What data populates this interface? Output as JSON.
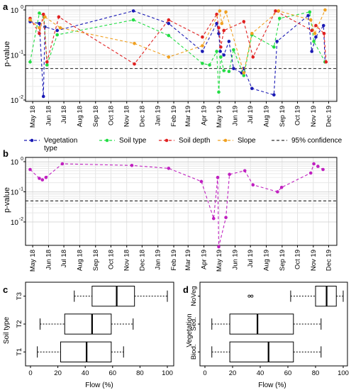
{
  "panels": {
    "a": {
      "label": "a",
      "ylabel": "p-value"
    },
    "b": {
      "label": "b",
      "ylabel": "p-value"
    },
    "c": {
      "label": "c",
      "ylabel": "Soil type",
      "xlabel": "Flow (%)"
    },
    "d": {
      "label": "d",
      "ylabel": "Vegetation",
      "xlabel": "Flow (%)"
    }
  },
  "time_axis": {
    "labels": [
      "May 18",
      "Jun 18",
      "Jul 18",
      "Aug 18",
      "Sep 18",
      "Oct 18",
      "Nov 18",
      "Dec 18",
      "Jan 19",
      "Feb 19",
      "Mar 19",
      "Apr 19",
      "May 19",
      "Jun 19",
      "Jul 19",
      "Aug 19",
      "Sep 19",
      "Oct 19",
      "Nov 19",
      "Dec 19"
    ]
  },
  "legend": {
    "items": [
      {
        "label": "Vegetation",
        "label2": "type",
        "color": "#1a1ab5"
      },
      {
        "label": "Soil type",
        "color": "#22dd44"
      },
      {
        "label": "Soil depth",
        "color": "#e02020"
      },
      {
        "label": "Slope",
        "color": "#f0a020"
      },
      {
        "label": "95% confidence",
        "color": "#333333"
      }
    ]
  },
  "chart_data": [
    {
      "type": "line",
      "panel": "a",
      "ylabel": "p-value",
      "yscale": "log",
      "ylim": [
        0.01,
        1
      ],
      "ytick_labels": [
        "10⁻²",
        "10⁻¹",
        "10⁰"
      ],
      "xlim": [
        "2018-05-01",
        "2019-12-31"
      ],
      "grid": true,
      "reference_line": {
        "y": 0.05,
        "label": "95% confidence",
        "style": "dashed"
      },
      "series": [
        {
          "name": "Vegetation type",
          "color": "#1a1ab5",
          "x": [
            "2018-05-10",
            "2018-05-28",
            "2018-06-05",
            "2018-06-08",
            "2018-07-02",
            "2018-11-28",
            "2019-02-05",
            "2019-04-12",
            "2019-05-10",
            "2019-05-14",
            "2019-05-17",
            "2019-05-24",
            "2019-06-03",
            "2019-06-12",
            "2019-06-28",
            "2019-07-02",
            "2019-07-18",
            "2019-08-30",
            "2019-09-05",
            "2019-11-05",
            "2019-11-12",
            "2019-11-20",
            "2019-12-05",
            "2019-12-08"
          ],
          "y": [
            0.55,
            0.5,
            0.012,
            0.42,
            0.35,
            0.95,
            0.5,
            0.12,
            0.5,
            0.3,
            0.12,
            0.1,
            0.2,
            0.05,
            0.04,
            0.05,
            0.018,
            0.013,
            0.2,
            0.75,
            0.12,
            0.25,
            0.45,
            0.07
          ]
        },
        {
          "name": "Soil type",
          "color": "#22dd44",
          "x": [
            "2018-05-10",
            "2018-05-28",
            "2018-06-06",
            "2018-06-12",
            "2018-07-02",
            "2018-11-28",
            "2019-02-05",
            "2019-04-12",
            "2019-04-26",
            "2019-05-10",
            "2019-05-14",
            "2019-05-18",
            "2019-05-24",
            "2019-06-03",
            "2019-06-12",
            "2019-07-02",
            "2019-07-18",
            "2019-08-30",
            "2019-09-10",
            "2019-11-08",
            "2019-11-16",
            "2019-12-08"
          ],
          "y": [
            0.07,
            0.85,
            0.7,
            0.06,
            0.28,
            0.6,
            0.27,
            0.065,
            0.06,
            0.12,
            0.015,
            0.09,
            0.045,
            0.043,
            0.13,
            0.035,
            0.28,
            0.15,
            0.65,
            0.9,
            0.2,
            0.07
          ]
        },
        {
          "name": "Soil depth",
          "color": "#e02020",
          "x": [
            "2018-05-10",
            "2018-05-28",
            "2018-06-05",
            "2018-06-12",
            "2018-07-05",
            "2018-11-30",
            "2019-02-05",
            "2019-04-12",
            "2019-05-10",
            "2019-05-14",
            "2019-05-18",
            "2019-05-24",
            "2019-07-02",
            "2019-07-20",
            "2019-09-02",
            "2019-11-12",
            "2019-11-20",
            "2019-12-06",
            "2019-12-10"
          ],
          "y": [
            0.65,
            0.3,
            0.8,
            0.07,
            0.7,
            0.063,
            0.6,
            0.25,
            0.8,
            0.4,
            0.15,
            0.35,
            0.55,
            0.09,
            0.95,
            0.35,
            0.45,
            0.3,
            0.07
          ]
        },
        {
          "name": "Slope",
          "color": "#f0a020",
          "x": [
            "2018-05-10",
            "2018-05-28",
            "2018-06-08",
            "2018-07-08",
            "2018-11-30",
            "2019-02-05",
            "2019-04-12",
            "2019-05-16",
            "2019-05-20",
            "2019-05-28",
            "2019-07-02",
            "2019-07-18",
            "2019-09-08",
            "2019-11-10",
            "2019-11-18",
            "2019-12-08"
          ],
          "y": [
            0.6,
            0.4,
            0.7,
            0.4,
            0.18,
            0.09,
            0.16,
            0.95,
            0.5,
            0.9,
            0.04,
            0.3,
            0.95,
            0.6,
            0.3,
            1.0
          ]
        }
      ]
    },
    {
      "type": "line",
      "panel": "b",
      "ylabel": "p-value",
      "yscale": "log",
      "ylim": [
        0.001,
        1
      ],
      "ytick_labels": [
        "10⁻²",
        "10⁻¹",
        "10⁰"
      ],
      "xlim": [
        "2018-05-01",
        "2019-12-31"
      ],
      "grid": true,
      "reference_line": {
        "y": 0.05,
        "style": "dashed"
      },
      "series": [
        {
          "color": "#c020c0",
          "x": [
            "2018-05-10",
            "2018-05-28",
            "2018-06-03",
            "2018-06-10",
            "2018-07-12",
            "2018-11-25",
            "2019-02-05",
            "2019-04-10",
            "2019-05-04",
            "2019-05-12",
            "2019-05-14",
            "2019-05-28",
            "2019-06-04",
            "2019-07-04",
            "2019-07-20",
            "2019-09-06",
            "2019-09-14",
            "2019-11-10",
            "2019-11-16",
            "2019-11-24",
            "2019-12-04"
          ],
          "y": [
            0.55,
            0.28,
            0.25,
            0.3,
            0.85,
            0.75,
            0.6,
            0.22,
            0.013,
            0.3,
            0.0015,
            0.014,
            0.38,
            0.5,
            0.17,
            0.1,
            0.14,
            0.42,
            0.85,
            0.7,
            0.55
          ]
        }
      ]
    },
    {
      "type": "box",
      "panel": "c",
      "ylabel": "Soil type",
      "xlabel": "Flow (%)",
      "xlim": [
        0,
        100
      ],
      "xticks": [
        0,
        20,
        40,
        60,
        80,
        100
      ],
      "categories": [
        "T1",
        "T2",
        "T3"
      ],
      "boxes": [
        {
          "name": "T1",
          "whisker_low": 5,
          "q1": 22,
          "median": 41,
          "q3": 59,
          "whisker_high": 68
        },
        {
          "name": "T2",
          "whisker_low": 7,
          "q1": 25,
          "median": 45,
          "q3": 59,
          "whisker_high": 75
        },
        {
          "name": "T3",
          "whisker_low": 32,
          "q1": 45,
          "median": 63,
          "q3": 76,
          "whisker_high": 100
        }
      ]
    },
    {
      "type": "box",
      "panel": "d",
      "ylabel": "Vegetation",
      "xlabel": "Flow (%)",
      "xlim": [
        0,
        100
      ],
      "xticks": [
        0,
        20,
        40,
        60,
        80,
        100
      ],
      "categories": [
        "Biod.",
        "Sed.",
        "NoVeg"
      ],
      "boxes": [
        {
          "name": "Biod.",
          "whisker_low": 5,
          "q1": 18,
          "median": 46,
          "q3": 64,
          "whisker_high": 84
        },
        {
          "name": "Sed.",
          "whisker_low": 5,
          "q1": 18,
          "median": 38,
          "q3": 64,
          "whisker_high": 84
        },
        {
          "name": "NoVeg",
          "whisker_low": 62,
          "q1": 80,
          "median": 88,
          "q3": 95,
          "whisker_high": 100,
          "outliers": [
            32,
            34
          ]
        }
      ]
    }
  ]
}
